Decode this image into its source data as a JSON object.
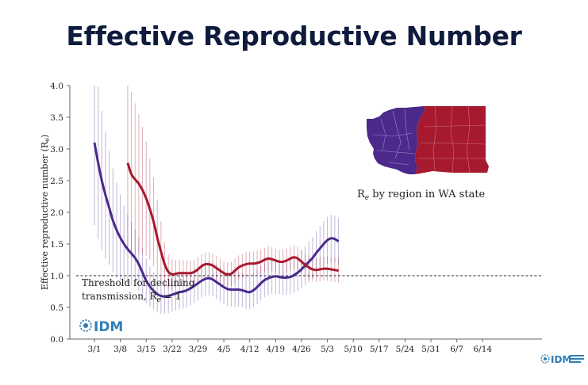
{
  "title": "Effective Reproductive Number",
  "colors": {
    "west": "#4b2a8c",
    "east": "#a6192e",
    "title": "#0f1b3d",
    "logo": "#2f7fb8"
  },
  "logo": {
    "text": "IDM",
    "icon": "idm-logo-icon"
  },
  "footer_logo": {
    "text": "IDM",
    "icon": "idm-logo-icon"
  },
  "annotation": {
    "line1": "Threshold for declining",
    "line2": "transmission, R",
    "sub": "e",
    "suffix": " = 1"
  },
  "inset": {
    "caption_r": "R",
    "caption_sub": "e",
    "caption_rest": " by region in WA state"
  },
  "chart_data": {
    "type": "line",
    "ylabel": "Effective reproductive number (R",
    "ylabel_sub": "e",
    "ylabel_end": ")",
    "ylim": [
      0,
      4
    ],
    "yticks": [
      "0.0",
      "0.5",
      "1.0",
      "1.5",
      "2.0",
      "2.5",
      "3.0",
      "3.5",
      "4.0"
    ],
    "xticks": [
      "3/1",
      "3/8",
      "3/15",
      "3/22",
      "3/29",
      "4/5",
      "4/12",
      "4/19",
      "4/26",
      "5/3",
      "5/10",
      "5/17",
      "5/24",
      "5/31",
      "6/7",
      "6/14"
    ],
    "threshold": 1.0,
    "grid": false,
    "series": [
      {
        "region": "west",
        "start_date": "3/1",
        "values": [
          3.1,
          2.78,
          2.5,
          2.27,
          2.07,
          1.87,
          1.72,
          1.6,
          1.5,
          1.42,
          1.35,
          1.28,
          1.18,
          1.05,
          0.92,
          0.83,
          0.76,
          0.71,
          0.68,
          0.67,
          0.68,
          0.7,
          0.72,
          0.74,
          0.75,
          0.77,
          0.8,
          0.84,
          0.88,
          0.92,
          0.95,
          0.96,
          0.94,
          0.9,
          0.86,
          0.82,
          0.79,
          0.78,
          0.78,
          0.78,
          0.77,
          0.75,
          0.74,
          0.77,
          0.82,
          0.88,
          0.93,
          0.96,
          0.98,
          0.99,
          0.98,
          0.97,
          0.97,
          0.98,
          1.01,
          1.05,
          1.1,
          1.16,
          1.22,
          1.28,
          1.36,
          1.43,
          1.5,
          1.56,
          1.59,
          1.58,
          1.54
        ],
        "errors": [
          1.3,
          1.2,
          1.1,
          1.0,
          0.9,
          0.82,
          0.75,
          0.68,
          0.6,
          0.55,
          0.5,
          0.45,
          0.42,
          0.38,
          0.35,
          0.32,
          0.3,
          0.29,
          0.28,
          0.27,
          0.27,
          0.27,
          0.27,
          0.27,
          0.27,
          0.27,
          0.27,
          0.27,
          0.27,
          0.27,
          0.27,
          0.27,
          0.27,
          0.27,
          0.27,
          0.27,
          0.27,
          0.27,
          0.27,
          0.27,
          0.27,
          0.27,
          0.27,
          0.27,
          0.27,
          0.27,
          0.27,
          0.27,
          0.27,
          0.27,
          0.27,
          0.27,
          0.27,
          0.27,
          0.28,
          0.29,
          0.3,
          0.31,
          0.32,
          0.33,
          0.34,
          0.35,
          0.36,
          0.37,
          0.37,
          0.37,
          0.37
        ]
      },
      {
        "region": "east",
        "start_date": "3/10",
        "values": [
          2.78,
          2.6,
          2.52,
          2.45,
          2.35,
          2.22,
          2.05,
          1.85,
          1.6,
          1.38,
          1.18,
          1.06,
          1.02,
          1.03,
          1.04,
          1.04,
          1.04,
          1.04,
          1.06,
          1.1,
          1.15,
          1.18,
          1.18,
          1.16,
          1.12,
          1.08,
          1.04,
          1.02,
          1.03,
          1.08,
          1.13,
          1.16,
          1.18,
          1.19,
          1.19,
          1.2,
          1.22,
          1.25,
          1.27,
          1.26,
          1.24,
          1.22,
          1.22,
          1.24,
          1.27,
          1.29,
          1.27,
          1.22,
          1.17,
          1.13,
          1.1,
          1.09,
          1.1,
          1.11,
          1.11,
          1.1,
          1.09,
          1.08
        ],
        "errors": [
          1.4,
          1.3,
          1.2,
          1.1,
          1.0,
          0.9,
          0.8,
          0.7,
          0.6,
          0.48,
          0.36,
          0.27,
          0.24,
          0.22,
          0.21,
          0.2,
          0.2,
          0.19,
          0.19,
          0.19,
          0.19,
          0.19,
          0.19,
          0.19,
          0.19,
          0.19,
          0.19,
          0.19,
          0.19,
          0.19,
          0.19,
          0.19,
          0.19,
          0.19,
          0.19,
          0.19,
          0.19,
          0.19,
          0.19,
          0.19,
          0.19,
          0.19,
          0.19,
          0.19,
          0.19,
          0.19,
          0.19,
          0.19,
          0.19,
          0.19,
          0.19,
          0.19,
          0.19,
          0.19,
          0.19,
          0.19,
          0.19,
          0.19
        ]
      }
    ]
  }
}
